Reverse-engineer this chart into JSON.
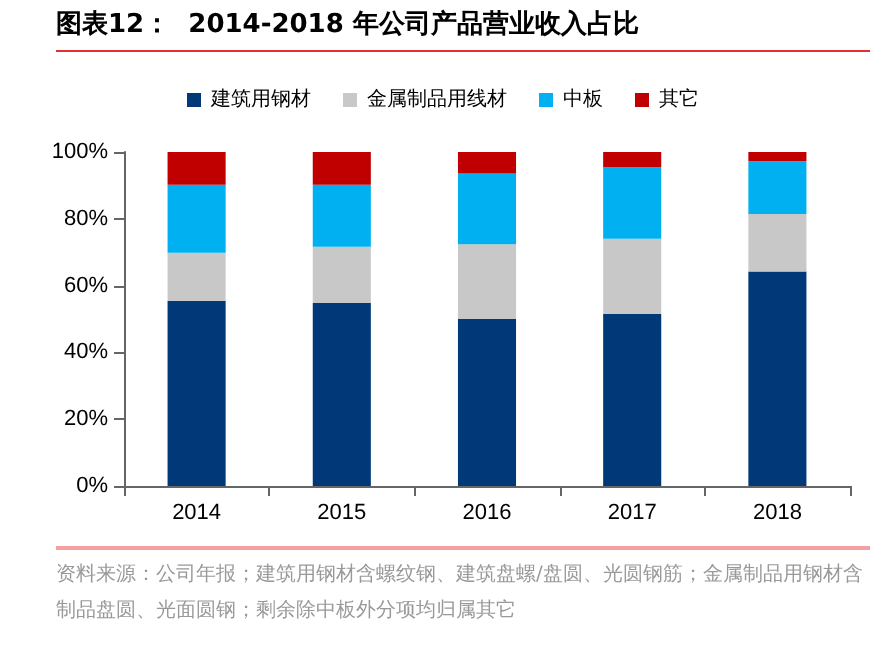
{
  "chart_data": {
    "type": "bar",
    "title": "图表12：  2014-2018 年公司产品营业收入占比",
    "categories": [
      "2014",
      "2015",
      "2016",
      "2017",
      "2018"
    ],
    "stacked": true,
    "legend": "top",
    "grid": false,
    "series": [
      {
        "name": "建筑用钢材",
        "color": "#003878",
        "values": [
          55.4,
          54.8,
          50,
          51.6,
          64.2
        ]
      },
      {
        "name": "金属制品用线材",
        "color": "#c8c8c8",
        "values": [
          14.4,
          16.8,
          22.4,
          22.4,
          17.2
        ]
      },
      {
        "name": "中板",
        "color": "#00b0f0",
        "values": [
          20.4,
          18.6,
          21.2,
          21.4,
          15.8
        ]
      },
      {
        "name": "其它",
        "color": "#c00000",
        "values": [
          9.8,
          9.8,
          6.4,
          4.6,
          2.8
        ]
      }
    ],
    "ylim": [
      0,
      100
    ],
    "yticks": [
      {
        "value": 0,
        "label": "0%"
      },
      {
        "value": 20,
        "label": "20%"
      },
      {
        "value": 40,
        "label": "40%"
      },
      {
        "value": 60,
        "label": "60%"
      },
      {
        "value": 80,
        "label": "80%"
      },
      {
        "value": 100,
        "label": "100%"
      }
    ],
    "annotations": [
      "资料来源：公司年报；建筑用钢材含螺纹钢、建筑盘螺/盘圆、光圆钢筋；金属制品用钢材含制品盘圆、光面圆钢；剩余除中板外分项均归属其它"
    ]
  }
}
